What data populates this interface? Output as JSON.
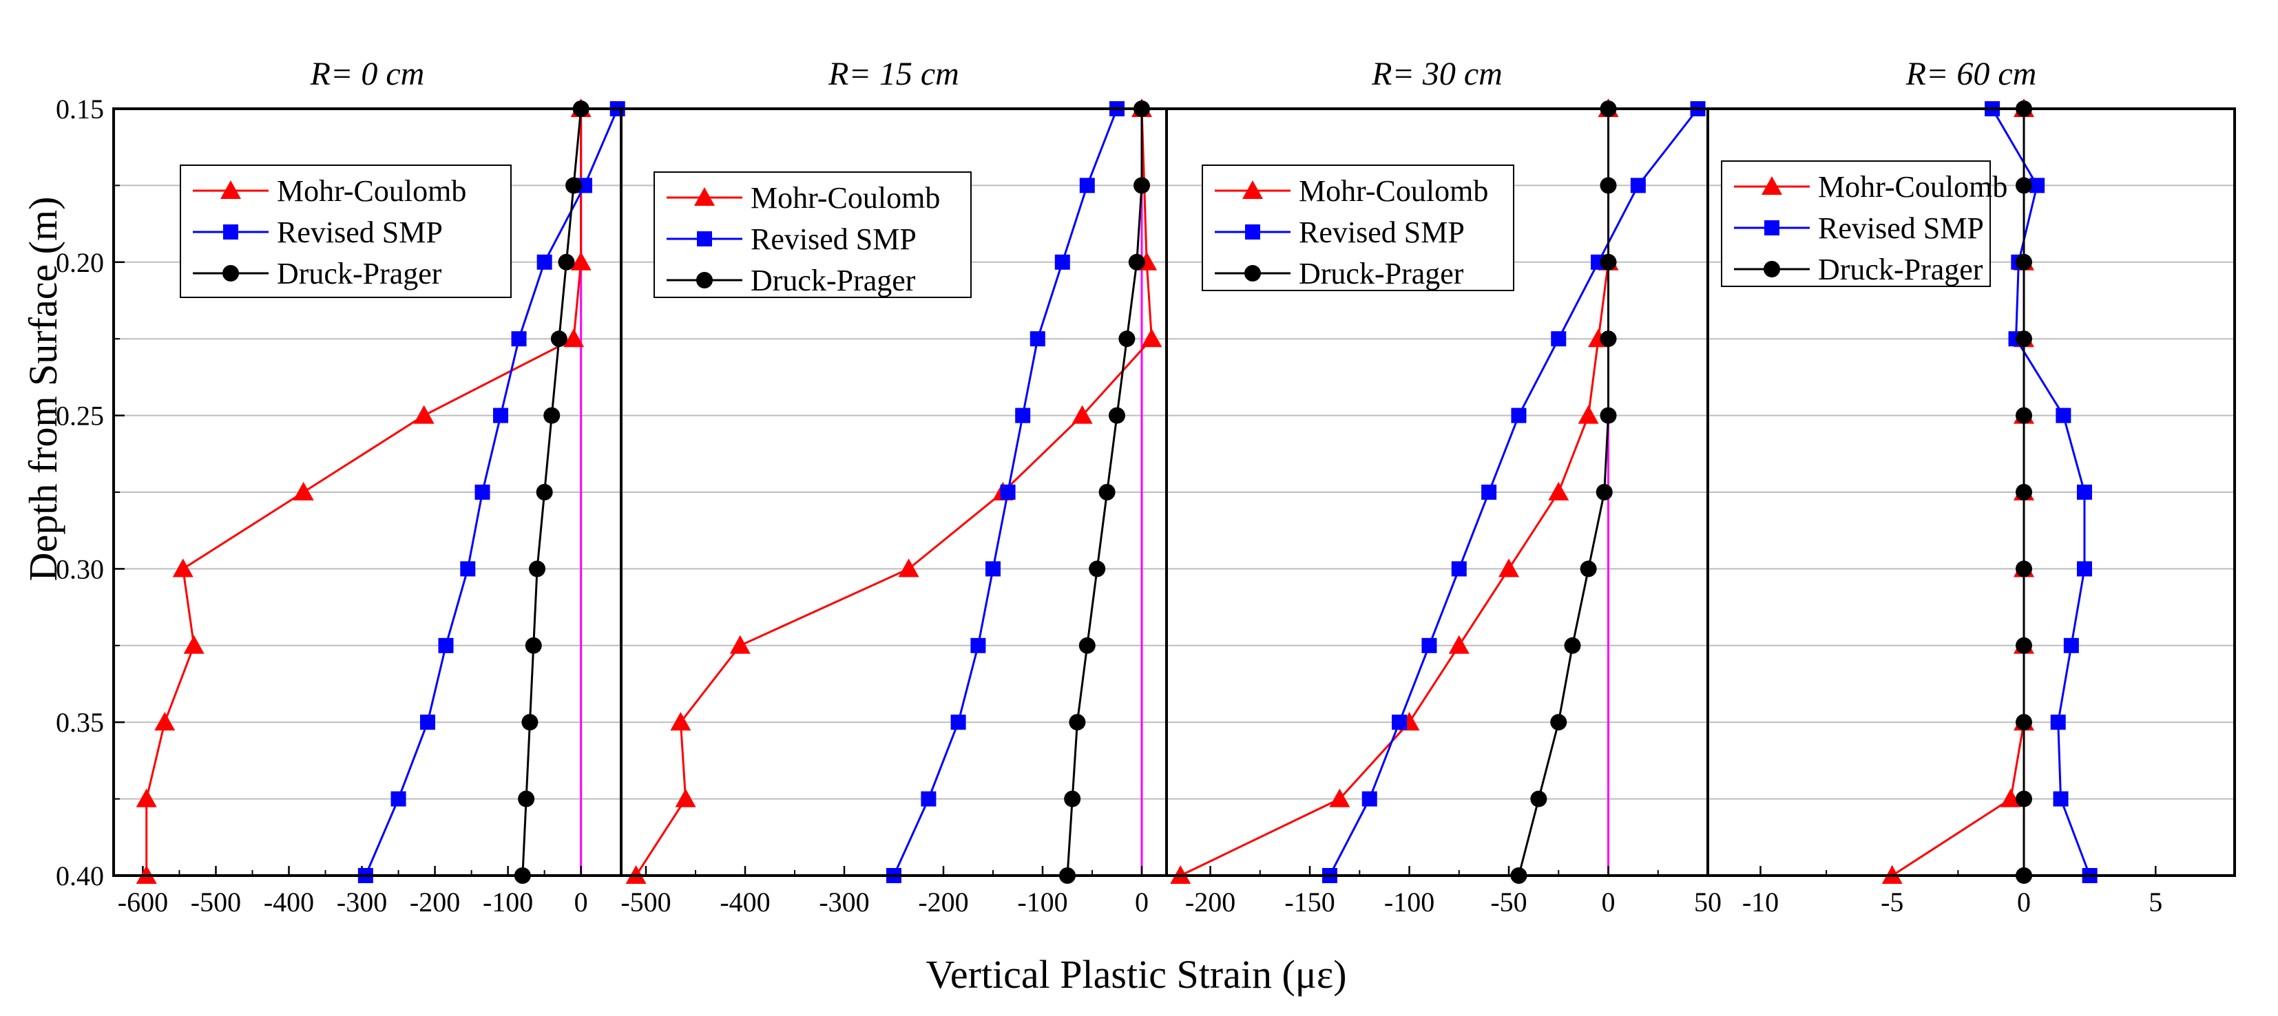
{
  "chart_data": {
    "type": "line",
    "xlabel": "Vertical Plastic Strain (με)",
    "ylabel": "Depth from Surface (m)",
    "depth_axis": {
      "ylim": [
        0.15,
        0.4
      ],
      "ticks": [
        0.15,
        0.2,
        0.25,
        0.3,
        0.35,
        0.4
      ],
      "tick_labels": [
        "0.15",
        "0.20",
        "0.25",
        "0.30",
        "0.35",
        "0.40"
      ],
      "minor_ticks": [
        0.175,
        0.225,
        0.275,
        0.325,
        0.375
      ],
      "inverted": true
    },
    "depths": [
      0.15,
      0.175,
      0.2,
      0.225,
      0.25,
      0.275,
      0.3,
      0.325,
      0.35,
      0.375,
      0.4
    ],
    "series_styles": [
      {
        "name": "Mohr-Coulomb",
        "color": "#ff0000",
        "marker": "triangle"
      },
      {
        "name": "Revised SMP",
        "color": "#0000ff",
        "marker": "square"
      },
      {
        "name": "Druck-Prager",
        "color": "#000000",
        "marker": "circle"
      }
    ],
    "reference_line_color": "#ff00ff",
    "panels": [
      {
        "title": "R= 0 cm",
        "xlim": [
          -640,
          55
        ],
        "xticks": [
          -600,
          -500,
          -400,
          -300,
          -200,
          -100,
          0
        ],
        "xtick_labels": [
          "-600",
          "-500",
          "-400",
          "-300",
          "-200",
          "-100",
          "0"
        ],
        "legend_position": "top-left",
        "series": [
          {
            "name": "Mohr-Coulomb",
            "values": [
              0,
              null,
              0,
              -10,
              -215,
              -380,
              -545,
              -530,
              -570,
              -595,
              -595
            ]
          },
          {
            "name": "Revised SMP",
            "values": [
              50,
              5,
              -50,
              -85,
              -110,
              -135,
              -155,
              -185,
              -210,
              -250,
              -295
            ]
          },
          {
            "name": "Druck-Prager",
            "values": [
              0,
              -10,
              -20,
              -30,
              -40,
              -50,
              -60,
              -65,
              -70,
              -75,
              -80
            ]
          }
        ]
      },
      {
        "title": "R= 15 cm",
        "xlim": [
          -525,
          25
        ],
        "xticks": [
          -500,
          -400,
          -300,
          -200,
          -100,
          0
        ],
        "xtick_labels": [
          "-500",
          "-400",
          "-300",
          "-200",
          "-100",
          "0"
        ],
        "legend_position": "top-left",
        "series": [
          {
            "name": "Mohr-Coulomb",
            "values": [
              0,
              null,
              5,
              10,
              -60,
              -140,
              -235,
              -405,
              -465,
              -460,
              -510
            ]
          },
          {
            "name": "Revised SMP",
            "values": [
              -25,
              -55,
              -80,
              -105,
              -120,
              -135,
              -150,
              -165,
              -185,
              -215,
              -250
            ]
          },
          {
            "name": "Druck-Prager",
            "values": [
              0,
              0,
              -5,
              -15,
              -25,
              -35,
              -45,
              -55,
              -65,
              -70,
              -75
            ]
          }
        ]
      },
      {
        "title": "R= 30 cm",
        "xlim": [
          -222,
          50
        ],
        "xticks": [
          -200,
          -150,
          -100,
          -50,
          0,
          50
        ],
        "xtick_labels": [
          "-200",
          "-150",
          "-100",
          "-50",
          "0",
          "50"
        ],
        "legend_position": "top-left",
        "series": [
          {
            "name": "Mohr-Coulomb",
            "values": [
              0,
              null,
              0,
              -5,
              -10,
              -25,
              -50,
              -75,
              -100,
              -135,
              -215
            ]
          },
          {
            "name": "Revised SMP",
            "values": [
              45,
              15,
              -5,
              -25,
              -45,
              -60,
              -75,
              -90,
              -105,
              -120,
              -140
            ]
          },
          {
            "name": "Druck-Prager",
            "values": [
              0,
              0,
              0,
              0,
              0,
              -2,
              -10,
              -18,
              -25,
              -35,
              -45
            ]
          }
        ]
      },
      {
        "title": "R= 60 cm",
        "xlim": [
          -12,
          8
        ],
        "xticks": [
          -10,
          -5,
          0,
          5
        ],
        "xtick_labels": [
          "-10",
          "-5",
          "0",
          "5"
        ],
        "legend_position": "top-left",
        "series": [
          {
            "name": "Mohr-Coulomb",
            "values": [
              0,
              null,
              0,
              0,
              0,
              0,
              0,
              0,
              0,
              -0.5,
              -5
            ]
          },
          {
            "name": "Revised SMP",
            "values": [
              -1.2,
              0.5,
              -0.2,
              -0.3,
              1.5,
              2.3,
              2.3,
              1.8,
              1.3,
              1.4,
              2.5
            ]
          },
          {
            "name": "Druck-Prager",
            "values": [
              0,
              0,
              0,
              0,
              0,
              0,
              0,
              0,
              0,
              0,
              0
            ]
          }
        ]
      }
    ]
  }
}
